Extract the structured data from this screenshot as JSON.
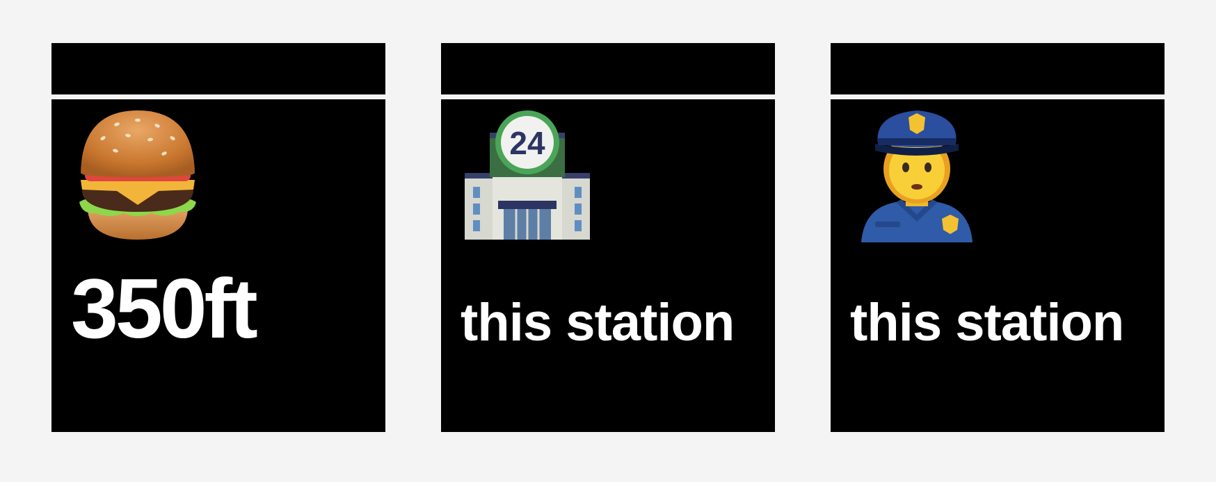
{
  "tiles": [
    {
      "icon": "hamburger-icon",
      "text": "350ft"
    },
    {
      "icon": "24-hour-store-building-icon",
      "text": "this station"
    },
    {
      "icon": "police-officer-icon",
      "text": "this station"
    }
  ]
}
